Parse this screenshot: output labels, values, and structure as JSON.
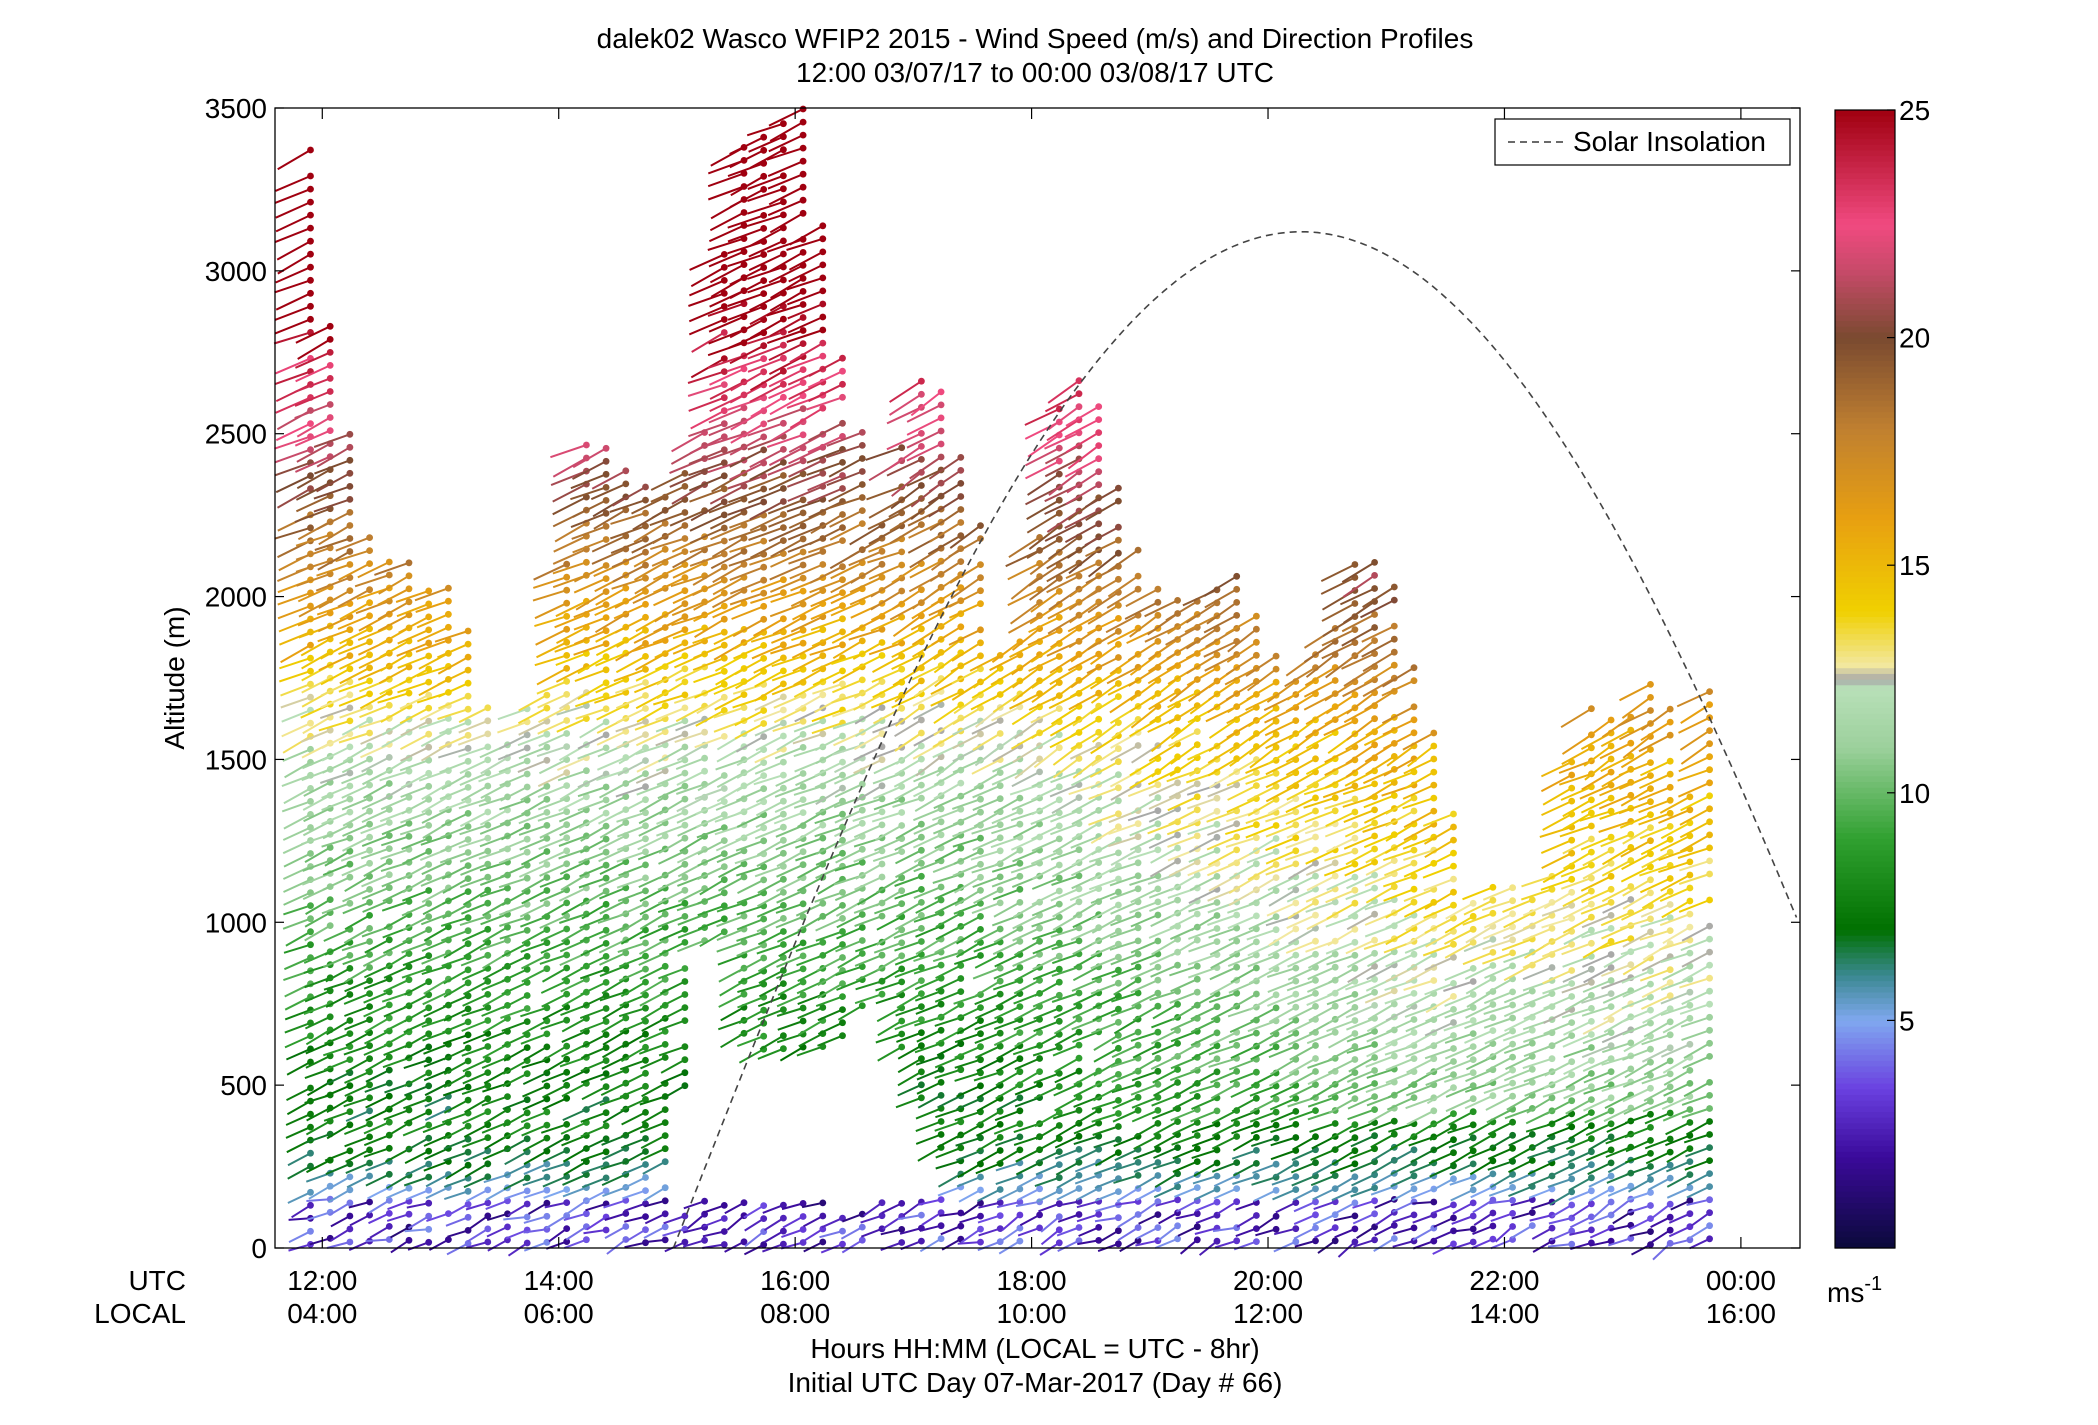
{
  "chart_data": {
    "type": "wind_barb_profile",
    "title": "dalek02 Wasco WFIP2 2015 - Wind Speed (m/s) and Direction Profiles",
    "subtitle": "12:00 03/07/17 to 00:00 03/08/17  UTC",
    "ylabel": "Altitude (m)",
    "xlabel": "Hours HH:MM  (LOCAL = UTC - 8hr)",
    "xlabel2": "Initial UTC Day 07-Mar-2017 (Day # 66)",
    "row_label_utc": "UTC",
    "row_label_local": "LOCAL",
    "ylim": [
      0,
      3500
    ],
    "y_ticks": [
      "0",
      "500",
      "1000",
      "1500",
      "2000",
      "2500",
      "3000",
      "3500"
    ],
    "y_tick_values": [
      0,
      500,
      1000,
      1500,
      2000,
      2500,
      3000,
      3500
    ],
    "xlim_hours": [
      11.6,
      24.5
    ],
    "x_tick_hours": [
      12,
      14,
      16,
      18,
      20,
      22,
      24
    ],
    "x_ticks_utc": [
      "12:00",
      "14:00",
      "16:00",
      "18:00",
      "20:00",
      "22:00",
      "00:00"
    ],
    "x_ticks_local": [
      "04:00",
      "06:00",
      "08:00",
      "10:00",
      "12:00",
      "14:00",
      "16:00"
    ],
    "legend": {
      "label": "Solar Insolation",
      "placement": "top-right"
    },
    "colorbar": {
      "unit": "ms",
      "unit_superscript": "-1",
      "range": [
        0,
        25
      ],
      "ticks": [
        "5",
        "10",
        "15",
        "20",
        "25"
      ],
      "tick_values": [
        5,
        10,
        15,
        20,
        25
      ],
      "stops": [
        {
          "v": 0,
          "c": "#0a0a3a"
        },
        {
          "v": 2,
          "c": "#3a0a9a"
        },
        {
          "v": 3.5,
          "c": "#6a40e0"
        },
        {
          "v": 5,
          "c": "#80a8f0"
        },
        {
          "v": 6,
          "c": "#3a8890"
        },
        {
          "v": 7,
          "c": "#007000"
        },
        {
          "v": 9,
          "c": "#30a030"
        },
        {
          "v": 11,
          "c": "#9cd09c"
        },
        {
          "v": 12.3,
          "c": "#b8e0b8"
        },
        {
          "v": 12.5,
          "c": "#a8a8a8"
        },
        {
          "v": 12.8,
          "c": "#f2e8a0"
        },
        {
          "v": 14,
          "c": "#f0d000"
        },
        {
          "v": 16,
          "c": "#e8a010"
        },
        {
          "v": 18,
          "c": "#c08030"
        },
        {
          "v": 20,
          "c": "#7a4a30"
        },
        {
          "v": 21.5,
          "c": "#c84a6a"
        },
        {
          "v": 22.5,
          "c": "#f04a80"
        },
        {
          "v": 25,
          "c": "#a00010"
        }
      ]
    },
    "solar_insolation": {
      "start_hour": 14.97,
      "peak_hour": 20.28,
      "peak_altitude_m": 3120,
      "end_altitude_m": 970
    },
    "profile_summary": {
      "profile_start_hour": 11.9,
      "profile_end_hour": 23.85,
      "profile_interval_hour": 0.1667,
      "range_gate_m": 40
    }
  }
}
